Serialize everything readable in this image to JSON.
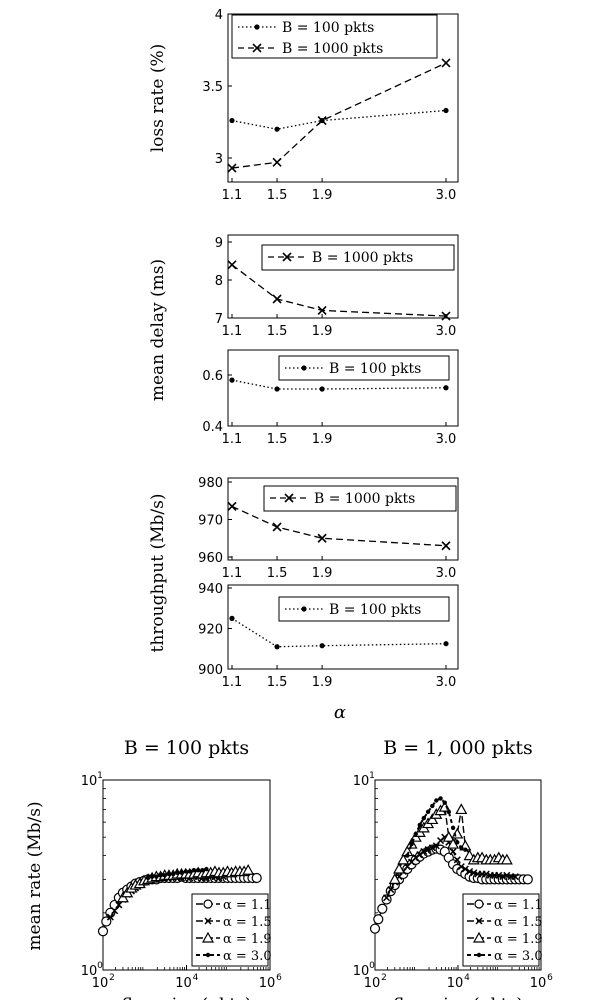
{
  "chart_data": [
    {
      "type": "line",
      "ylabel": "loss rate (%)",
      "x": [
        1.1,
        1.5,
        1.9,
        3.0
      ],
      "xticks": [
        "1.1",
        "1.5",
        "1.9",
        "3.0"
      ],
      "ylim": [
        2.8,
        4.0
      ],
      "yticks": [
        "3",
        "3.5",
        "4"
      ],
      "legend": "top-left",
      "series": [
        {
          "name": "B = 100 pkts",
          "style": "dotted-dot",
          "values": [
            3.26,
            3.2,
            3.26,
            3.33
          ]
        },
        {
          "name": "B = 1000 pkts",
          "style": "dashed-x",
          "values": [
            2.93,
            2.97,
            3.26,
            3.66
          ]
        }
      ]
    },
    {
      "type": "line",
      "ylabel": "mean delay (ms)",
      "x": [
        1.1,
        1.5,
        1.9,
        3.0
      ],
      "xticks": [
        "1.1",
        "1.5",
        "1.9",
        "3.0"
      ],
      "ylim": [
        7,
        9
      ],
      "yticks": [
        "7",
        "8",
        "9"
      ],
      "legend": "top-right",
      "series": [
        {
          "name": "B = 1000 pkts",
          "style": "dashed-x",
          "values": [
            8.4,
            7.5,
            7.2,
            7.05
          ]
        }
      ]
    },
    {
      "type": "line",
      "ylabel": "mean delay (ms)",
      "x": [
        1.1,
        1.5,
        1.9,
        3.0
      ],
      "xticks": [
        "1.1",
        "1.5",
        "1.9",
        "3.0"
      ],
      "ylim": [
        0.4,
        0.7
      ],
      "yticks": [
        "0.4",
        "0.6"
      ],
      "legend": "top-right",
      "series": [
        {
          "name": "B = 100 pkts",
          "style": "dotted-dot",
          "values": [
            0.58,
            0.545,
            0.545,
            0.55
          ]
        }
      ]
    },
    {
      "type": "line",
      "ylabel": "throughput (Mb/s)",
      "x": [
        1.1,
        1.5,
        1.9,
        3.0
      ],
      "xticks": [
        "1.1",
        "1.5",
        "1.9",
        "3.0"
      ],
      "ylim": [
        960,
        980
      ],
      "yticks": [
        "960",
        "970",
        "980"
      ],
      "legend": "top-right",
      "series": [
        {
          "name": "B = 1000 pkts",
          "style": "dashed-x",
          "values": [
            973.5,
            968,
            965,
            963
          ]
        }
      ]
    },
    {
      "type": "line",
      "ylabel": "throughput (Mb/s)",
      "xlabel": "α",
      "x": [
        1.1,
        1.5,
        1.9,
        3.0
      ],
      "xticks": [
        "1.1",
        "1.5",
        "1.9",
        "3.0"
      ],
      "ylim": [
        900,
        940
      ],
      "yticks": [
        "900",
        "920",
        "940"
      ],
      "legend": "top-right",
      "series": [
        {
          "name": "B = 100 pkts",
          "style": "dotted-dot",
          "values": [
            925,
            911,
            911.5,
            912.5
          ]
        }
      ]
    },
    {
      "type": "line",
      "title": "B = 100 pkts",
      "xlabel": "flow size (pkts)",
      "ylabel": "mean rate (Mb/s)",
      "xscale": "log",
      "yscale": "log",
      "xlim": [
        100,
        1000000
      ],
      "ylim": [
        1,
        10
      ],
      "legend": "bottom-right",
      "series": [
        {
          "name": "α = 1.1",
          "marker": "circle",
          "x": [
            100,
            120,
            150,
            190,
            240,
            300,
            380,
            480,
            600,
            760,
            960,
            1200,
            1500,
            1900,
            2400,
            3000,
            3800,
            4800,
            6000,
            7600,
            9600,
            12000,
            15000,
            19000,
            24000,
            30000,
            38000,
            48000,
            60000,
            76000,
            96000,
            120000,
            150000,
            190000,
            240000,
            300000,
            380000,
            480000
          ],
          "values": [
            1.6,
            1.8,
            2.0,
            2.2,
            2.4,
            2.55,
            2.65,
            2.75,
            2.85,
            2.9,
            2.95,
            3.0,
            3.0,
            3.0,
            3.05,
            3.05,
            3.05,
            3.05,
            3.05,
            3.1,
            3.05,
            3.05,
            3.05,
            3.05,
            3.05,
            3.05,
            3.05,
            3.05,
            3.05,
            3.05,
            3.05,
            3.05,
            3.05,
            3.05,
            3.05,
            3.05,
            3.05,
            3.05
          ]
        },
        {
          "name": "α = 1.5",
          "marker": "x",
          "x": [
            150,
            190,
            240,
            300,
            380,
            480,
            600,
            760,
            960,
            1200,
            1500,
            1900,
            2400,
            3000,
            3800,
            4800,
            6000,
            7600,
            9600,
            12000,
            15000,
            19000,
            24000,
            30000,
            38000,
            48000,
            60000,
            76000
          ],
          "values": [
            1.9,
            2.05,
            2.2,
            2.35,
            2.5,
            2.6,
            2.7,
            2.8,
            2.9,
            2.95,
            3.0,
            3.0,
            3.05,
            3.05,
            3.1,
            3.05,
            3.1,
            3.05,
            3.1,
            3.05,
            3.1,
            3.1,
            3.05,
            3.05,
            3.1,
            3.1,
            3.05,
            3.1
          ]
        },
        {
          "name": "α = 1.9",
          "marker": "triangle",
          "x": [
            300,
            380,
            480,
            600,
            760,
            960,
            1200,
            1500,
            1900,
            2400,
            3000,
            3800,
            4800,
            6000,
            7600,
            9600,
            12000,
            15000,
            19000,
            24000,
            30000,
            38000,
            48000,
            60000,
            76000,
            96000,
            120000,
            150000,
            190000,
            240000,
            300000
          ],
          "values": [
            2.4,
            2.55,
            2.7,
            2.8,
            2.85,
            2.95,
            3.0,
            3.05,
            3.1,
            3.1,
            3.15,
            3.15,
            3.15,
            3.2,
            3.2,
            3.2,
            3.2,
            3.2,
            3.25,
            3.2,
            3.25,
            3.25,
            3.3,
            3.25,
            3.25,
            3.3,
            3.25,
            3.3,
            3.3,
            3.3,
            3.35
          ]
        },
        {
          "name": "α = 3.0",
          "marker": "dot",
          "x": [
            1200,
            1500,
            1900,
            2400,
            3000,
            3800,
            4800,
            6000,
            7600,
            9600,
            12000,
            15000,
            19000,
            24000,
            30000
          ],
          "values": [
            3.05,
            3.1,
            3.1,
            3.15,
            3.15,
            3.2,
            3.2,
            3.25,
            3.25,
            3.3,
            3.3,
            3.35,
            3.35,
            3.35,
            3.4
          ]
        }
      ]
    },
    {
      "type": "line",
      "title": "B = 1, 000 pkts",
      "xlabel": "flow size (pkts)",
      "xscale": "log",
      "yscale": "log",
      "xlim": [
        100,
        1000000
      ],
      "ylim": [
        1,
        10
      ],
      "legend": "bottom-right",
      "series": [
        {
          "name": "α = 1.1",
          "marker": "circle",
          "x": [
            100,
            120,
            150,
            190,
            240,
            300,
            380,
            480,
            600,
            760,
            960,
            1200,
            1500,
            1900,
            2400,
            3000,
            3800,
            4800,
            6000,
            7600,
            9600,
            12000,
            15000,
            19000,
            24000,
            30000,
            38000,
            48000,
            60000,
            76000,
            96000,
            120000,
            150000,
            190000,
            240000,
            300000,
            380000,
            480000
          ],
          "values": [
            1.65,
            1.85,
            2.1,
            2.35,
            2.6,
            2.8,
            3.0,
            3.2,
            3.4,
            3.6,
            3.8,
            3.95,
            4.1,
            4.2,
            4.3,
            4.35,
            4.3,
            4.2,
            3.9,
            3.6,
            3.4,
            3.3,
            3.2,
            3.1,
            3.05,
            3.05,
            3.0,
            3.0,
            3.0,
            3.0,
            3.0,
            3.0,
            3.0,
            3.0,
            3.0,
            3.0,
            3.0,
            3.0
          ]
        },
        {
          "name": "α = 1.5",
          "marker": "x",
          "x": [
            190,
            240,
            300,
            380,
            480,
            600,
            760,
            960,
            1200,
            1500,
            1900,
            2400,
            3000,
            3800,
            4800,
            6000,
            7600,
            9600,
            12000,
            15000,
            19000,
            24000,
            30000,
            38000,
            48000,
            60000,
            76000,
            96000,
            120000,
            150000,
            190000,
            240000
          ],
          "values": [
            2.4,
            2.65,
            2.9,
            3.1,
            3.3,
            3.5,
            3.7,
            3.9,
            4.05,
            4.2,
            4.3,
            4.4,
            4.5,
            4.8,
            5.0,
            4.7,
            4.2,
            3.8,
            3.5,
            3.4,
            3.3,
            3.25,
            3.2,
            3.2,
            3.2,
            3.15,
            3.15,
            3.15,
            3.1,
            3.15,
            3.1,
            3.1
          ]
        },
        {
          "name": "α = 1.9",
          "marker": "triangle",
          "x": [
            300,
            380,
            480,
            600,
            760,
            960,
            1200,
            1500,
            1900,
            2400,
            3000,
            3800,
            4800,
            6000,
            7600,
            9600,
            12000,
            15000,
            19000,
            24000,
            30000,
            38000,
            48000,
            60000,
            76000,
            96000,
            120000,
            150000
          ],
          "values": [
            3.0,
            3.4,
            3.8,
            4.2,
            4.6,
            5.0,
            5.3,
            5.6,
            5.9,
            6.2,
            6.6,
            6.9,
            7.2,
            5.0,
            4.6,
            5.2,
            7.0,
            4.5,
            4.0,
            3.8,
            3.9,
            3.9,
            3.8,
            3.8,
            3.8,
            3.9,
            3.8,
            3.8
          ]
        },
        {
          "name": "α = 3.0",
          "marker": "dot",
          "x": [
            600,
            760,
            960,
            1200,
            1500,
            1900,
            2400,
            3000,
            3800,
            4800,
            6000,
            7600,
            9600,
            12000,
            15000
          ],
          "values": [
            4.0,
            4.6,
            5.2,
            5.8,
            6.3,
            6.8,
            7.3,
            7.8,
            8.0,
            7.6,
            6.8,
            5.6,
            4.7,
            4.4,
            4.3
          ]
        }
      ]
    }
  ]
}
